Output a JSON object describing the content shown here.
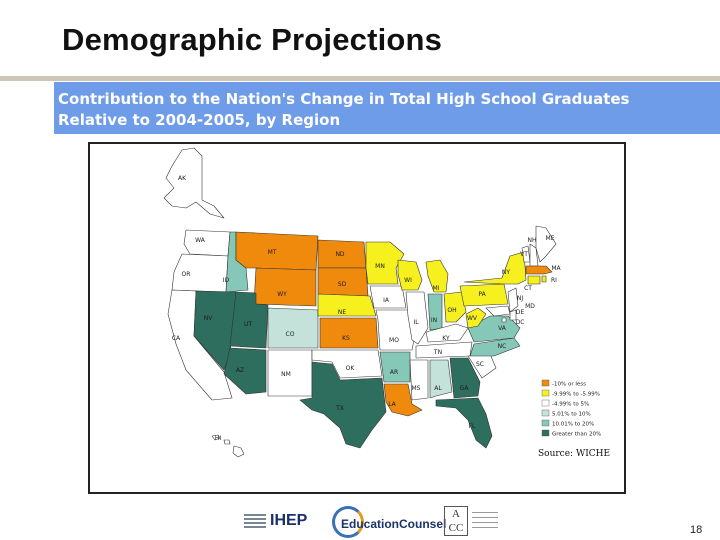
{
  "slide": {
    "title": "Demographic Projections",
    "subtitle": "Contribution to the Nation's Change in Total High School Graduates Relative to 2004-2005, by Region",
    "page_number": "18"
  },
  "map": {
    "source": "Source: WICHE",
    "colors": {
      "orange": "#f08a0c",
      "yellow": "#f5f01e",
      "white": "#ffffff",
      "pale_teal": "#c4e2da",
      "light_teal": "#86c8b7",
      "mid_teal": "#3e9c86",
      "dark_teal": "#2e6e5e",
      "outline": "#333333"
    },
    "legend": [
      {
        "label": "-10% or less",
        "color_key": "orange"
      },
      {
        "label": "-9.99% to -5.99%",
        "color_key": "yellow"
      },
      {
        "label": "-4.99% to 5%",
        "color_key": "white"
      },
      {
        "label": "5.01% to 10%",
        "color_key": "pale_teal"
      },
      {
        "label": "10.01% to 20%",
        "color_key": "light_teal"
      },
      {
        "label": "Greater than 20%",
        "color_key": "dark_teal"
      }
    ],
    "states": {
      "AK": "AK",
      "WA": "WA",
      "OR": "OR",
      "CA": "CA",
      "ID": "ID",
      "NV": "NV",
      "MT": "MT",
      "WY": "WY",
      "UT": "UT",
      "AZ": "AZ",
      "CO": "CO",
      "NM": "NM",
      "ND": "ND",
      "SD": "SD",
      "NE": "NE",
      "KS": "KS",
      "OK": "OK",
      "TX": "TX",
      "MN": "MN",
      "IA": "IA",
      "MO": "MO",
      "AR": "AR",
      "LA": "LA",
      "WI": "WI",
      "IL": "IL",
      "MS": "MS",
      "MI": "MI",
      "IN": "IN",
      "KY": "KY",
      "TN": "TN",
      "AL": "AL",
      "OH": "OH",
      "GA": "GA",
      "FL": "FL",
      "SC": "SC",
      "NC": "NC",
      "VA": "VA",
      "WV": "WV",
      "PA": "PA",
      "NY": "NY",
      "VT": "VT",
      "NH": "NH",
      "ME": "ME",
      "MA": "MA",
      "RI": "RI",
      "CT": "CT",
      "NJ": "NJ",
      "DE": "DE",
      "MD": "MD",
      "DC": "DC",
      "HI": "HI"
    }
  },
  "logos": {
    "ihep": "IHEP",
    "education_counsel": "EducationCounsel",
    "aacc": "AACC"
  }
}
